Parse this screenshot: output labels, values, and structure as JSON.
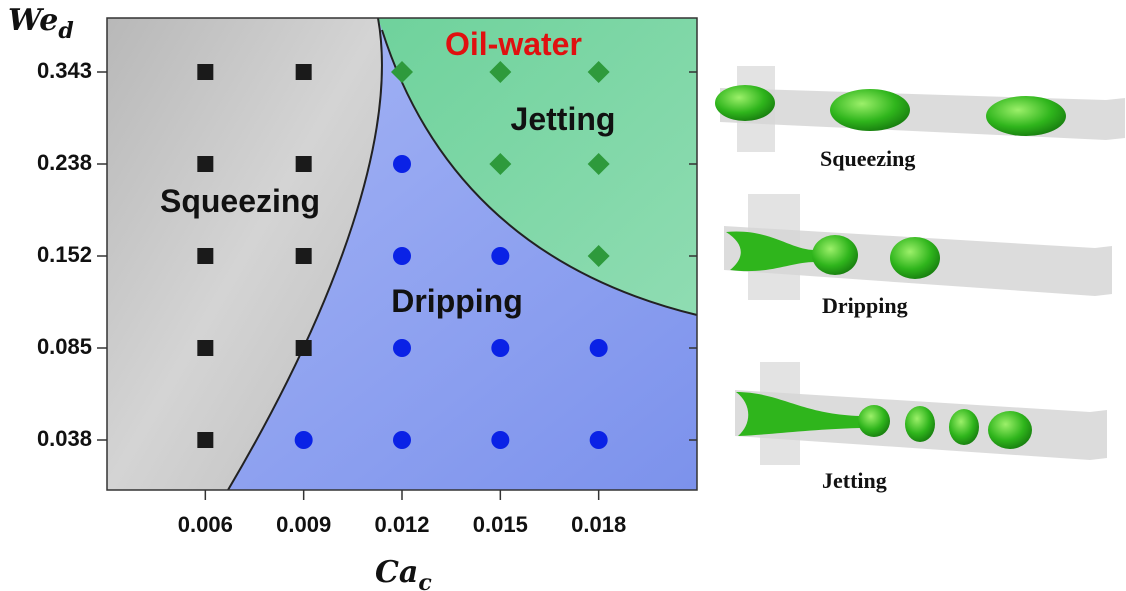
{
  "chart_data": {
    "type": "scatter",
    "annotation": "Oil-water",
    "x_label": {
      "main": "Ca",
      "sub": "c"
    },
    "y_label": {
      "main": "We",
      "sub": "d"
    },
    "xlim": [
      0.003,
      0.021
    ],
    "xticks": [
      0.006,
      0.009,
      0.012,
      0.015,
      0.018
    ],
    "yticks": [
      0.038,
      0.085,
      0.152,
      0.238,
      0.343
    ],
    "y_spacing": "even",
    "series": [
      {
        "name": "Squeezing",
        "marker": "square",
        "color": "#1a1a1a",
        "x": [
          0.006,
          0.006,
          0.006,
          0.006,
          0.006,
          0.009,
          0.009,
          0.009,
          0.009
        ],
        "values": [
          0.343,
          0.238,
          0.152,
          0.085,
          0.038,
          0.343,
          0.238,
          0.152,
          0.085
        ]
      },
      {
        "name": "Dripping",
        "marker": "circle",
        "color": "#0a22e6",
        "x": [
          0.009,
          0.012,
          0.012,
          0.012,
          0.012,
          0.015,
          0.015,
          0.015,
          0.018,
          0.018
        ],
        "values": [
          0.038,
          0.238,
          0.152,
          0.085,
          0.038,
          0.152,
          0.085,
          0.038,
          0.085,
          0.038
        ]
      },
      {
        "name": "Jetting",
        "marker": "diamond",
        "color": "#2e9a3c",
        "x": [
          0.012,
          0.015,
          0.015,
          0.018,
          0.018,
          0.018
        ],
        "values": [
          0.343,
          0.343,
          0.238,
          0.343,
          0.238,
          0.152
        ]
      }
    ]
  },
  "images": {
    "labels": [
      "Squeezing",
      "Dripping",
      "Jetting"
    ]
  }
}
